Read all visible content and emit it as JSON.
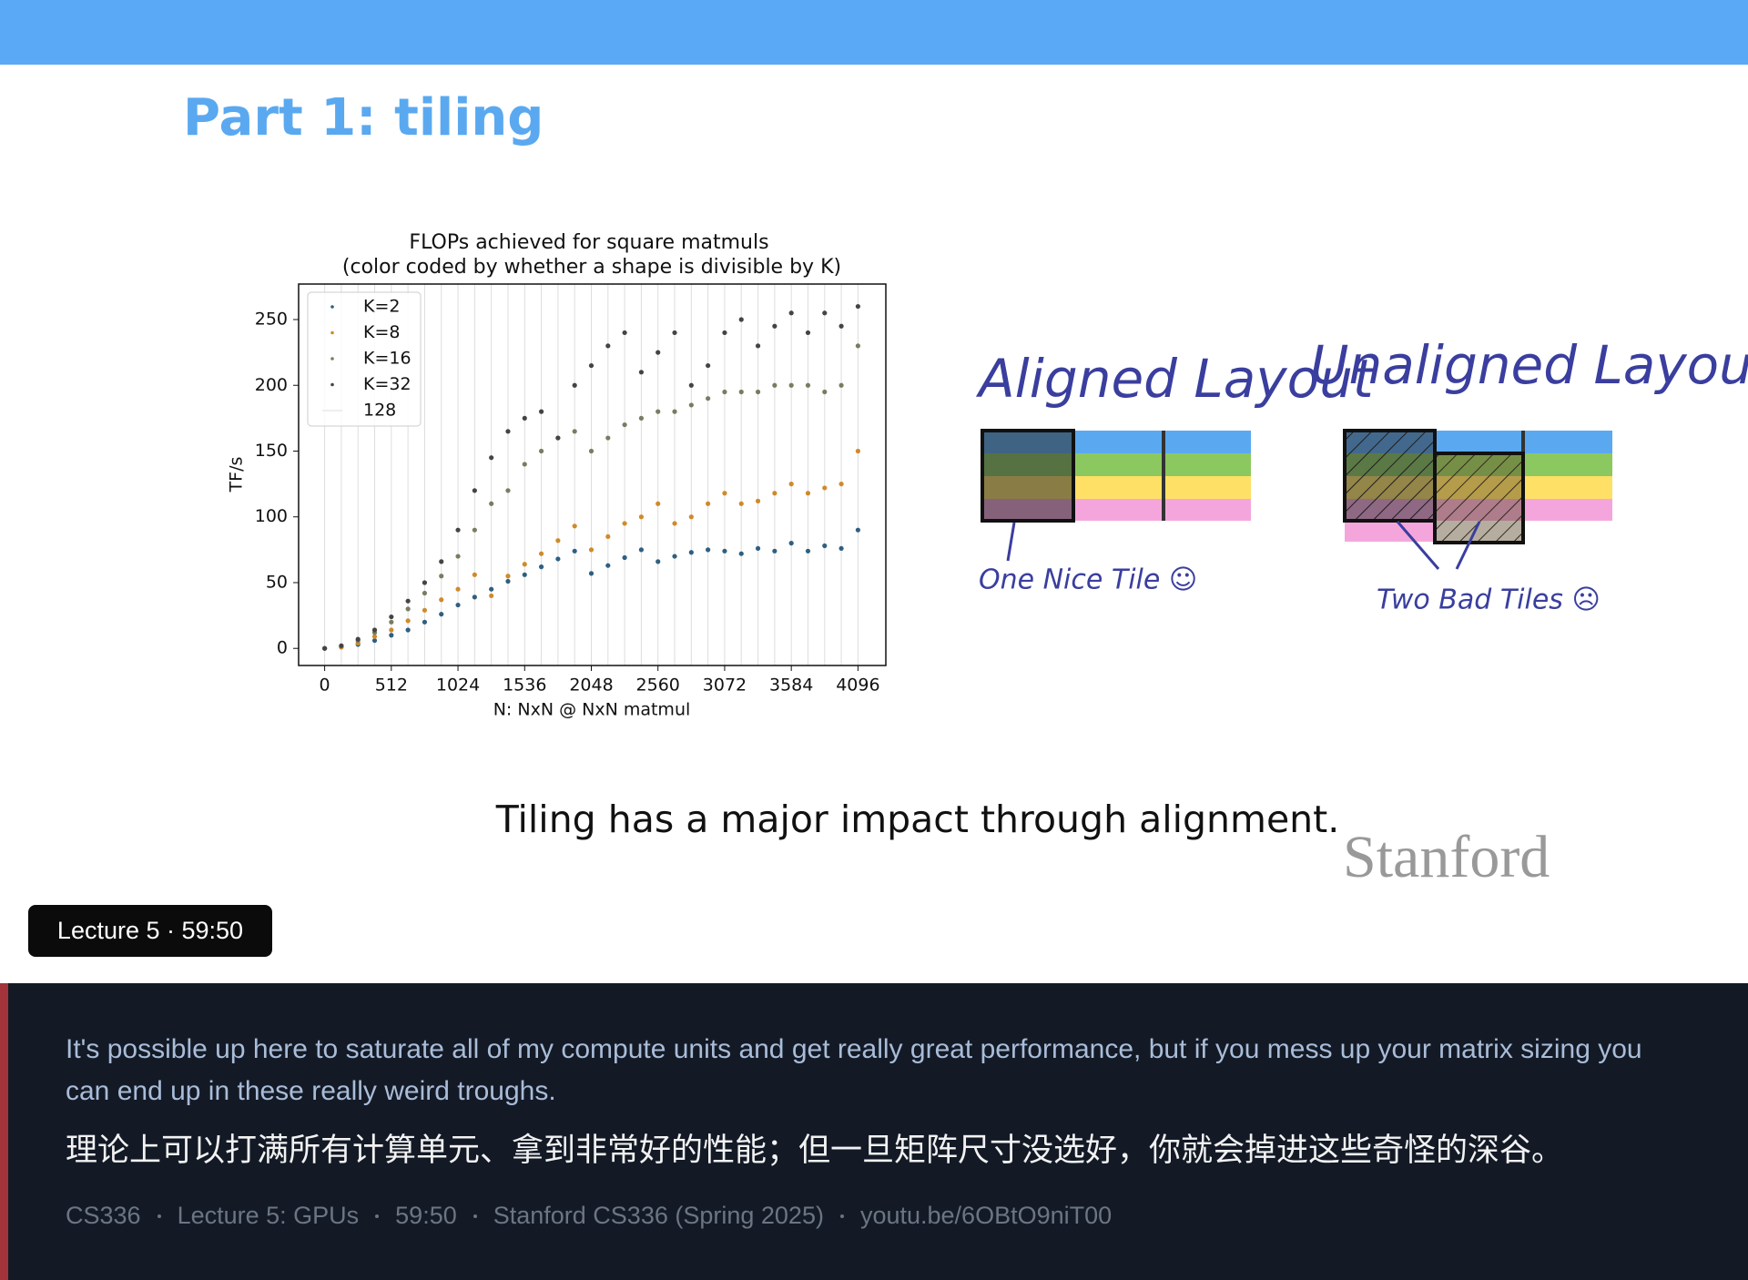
{
  "header": {
    "title": "Part 1: tiling"
  },
  "chart_data": {
    "type": "scatter",
    "title": "FLOPs achieved for square matmuls",
    "subtitle": "(color coded by whether a shape is divisible by K)",
    "x_label": "N: NxN @ NxN matmul",
    "y_label": "TF/s",
    "xlim": [
      -200,
      4310
    ],
    "ylim": [
      -13,
      277
    ],
    "xticks": [
      0,
      512,
      1024,
      1536,
      2048,
      2560,
      3072,
      3584,
      4096
    ],
    "yticks": [
      0,
      50,
      100,
      150,
      200,
      250
    ],
    "legend": "upper left",
    "x": [
      0,
      128,
      256,
      384,
      512,
      640,
      768,
      896,
      1024,
      1152,
      1280,
      1408,
      1536,
      1664,
      1792,
      1920,
      2048,
      2176,
      2304,
      2432,
      2560,
      2688,
      2816,
      2944,
      3072,
      3200,
      3328,
      3456,
      3584,
      3712,
      3840,
      3968,
      4096
    ],
    "series": [
      {
        "name": "K=2",
        "color": "#2f5f82",
        "values": [
          0,
          1,
          3,
          6,
          10,
          14,
          20,
          26,
          33,
          39,
          45,
          51,
          56,
          62,
          68,
          74,
          57,
          63,
          69,
          75,
          66,
          70,
          73,
          75,
          74,
          72,
          76,
          74,
          80,
          74,
          78,
          76,
          90
        ]
      },
      {
        "name": "K=8",
        "color": "#d08a2a",
        "values": [
          0,
          1,
          4,
          9,
          14,
          21,
          29,
          37,
          45,
          56,
          40,
          55,
          64,
          72,
          82,
          93,
          75,
          85,
          95,
          100,
          110,
          95,
          100,
          110,
          118,
          110,
          112,
          118,
          125,
          118,
          122,
          125,
          150
        ]
      },
      {
        "name": "K=16",
        "color": "#7b7b62",
        "values": [
          0,
          2,
          6,
          12,
          20,
          30,
          42,
          55,
          70,
          90,
          110,
          120,
          140,
          150,
          160,
          165,
          150,
          160,
          170,
          175,
          180,
          180,
          185,
          190,
          195,
          195,
          195,
          200,
          200,
          200,
          195,
          200,
          230
        ]
      },
      {
        "name": "K=32",
        "color": "#444444",
        "values": [
          0,
          2,
          7,
          14,
          24,
          36,
          50,
          66,
          90,
          120,
          145,
          165,
          175,
          180,
          160,
          200,
          215,
          230,
          240,
          210,
          225,
          240,
          200,
          215,
          240,
          250,
          230,
          245,
          255,
          240,
          255,
          245,
          260
        ]
      }
    ],
    "reference_lines": {
      "name": "128",
      "color": "#dddddd",
      "x": [
        0,
        128,
        256,
        384,
        512,
        640,
        768,
        896,
        1024,
        1152,
        1280,
        1408,
        1536,
        1664,
        1792,
        1920,
        2048,
        2176,
        2304,
        2432,
        2560,
        2688,
        2816,
        2944,
        3072,
        3200,
        3328,
        3456,
        3584,
        3712,
        3840,
        3968,
        4096
      ]
    }
  },
  "diagram": {
    "aligned": {
      "title": "Aligned Layout",
      "label": "One Nice Tile ☺"
    },
    "unaligned": {
      "title": "Unaligned Layout",
      "label": "Two Bad Tiles ☹"
    }
  },
  "slide": {
    "caption": "Tiling has a major impact through alignment.",
    "logo": "Stanford"
  },
  "badge": "Lecture 5 · 59:50",
  "subtitles": {
    "english": "It's possible up here to saturate all of my compute units and get really great performance, but if you mess up your matrix sizing you can end up in these really weird troughs.",
    "chinese": "理论上可以打满所有计算单元、拿到非常好的性能；但一旦矩阵尺寸没选好，你就会掉进这些奇怪的深谷。",
    "footer": [
      "CS336",
      "Lecture 5: GPUs",
      "59:50",
      "Stanford CS336 (Spring 2025)",
      "youtu.be/6OBtO9niT00"
    ]
  }
}
